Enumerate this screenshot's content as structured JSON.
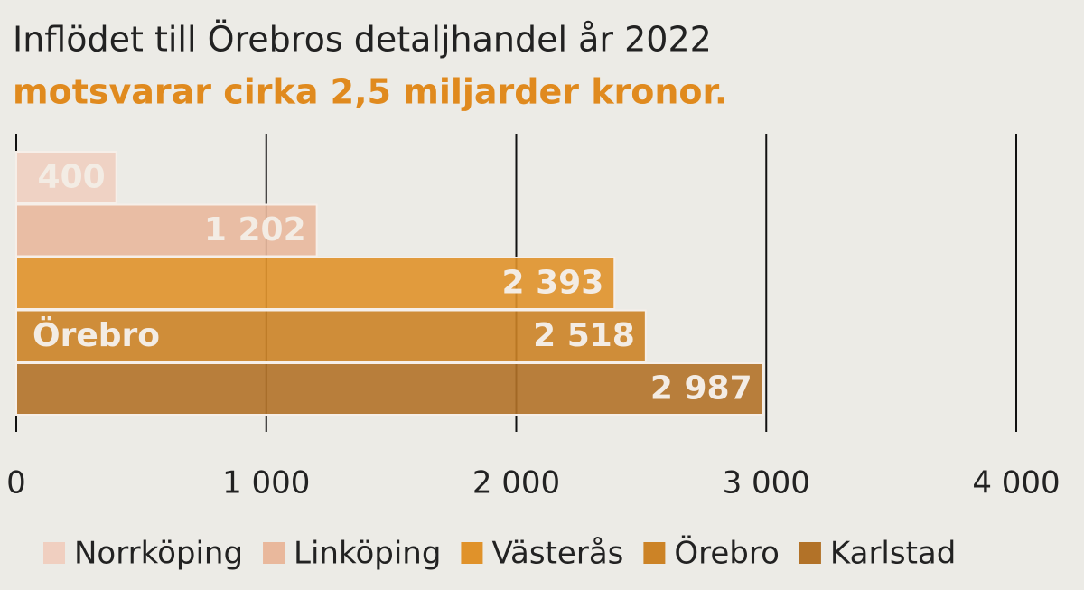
{
  "chart_data": {
    "type": "bar",
    "orientation": "horizontal",
    "title": "Inflödet till Örebros detaljhandel år 2022",
    "subtitle": "motsvarar cirka 2,5 miljarder kronor.",
    "series": [
      {
        "name": "Norrköping",
        "color": "#f0cfc0",
        "values": [
          400
        ]
      },
      {
        "name": "Linköping",
        "color": "#e9b89c",
        "values": [
          1202
        ],
        "value_labels": [
          "1 202"
        ]
      },
      {
        "name": "Västerås",
        "color": "#e0922a",
        "values": [
          2393
        ],
        "value_labels": [
          "2 393"
        ]
      },
      {
        "name": "Örebro",
        "color": "#cc8326",
        "values": [
          2518
        ],
        "value_labels": [
          "2 518"
        ]
      },
      {
        "name": "Karlstad",
        "color": "#b27228",
        "values": [
          2987
        ],
        "value_labels": [
          "2 987"
        ]
      }
    ],
    "highlight": 3,
    "xlim": [
      0,
      4000
    ],
    "xticks": [
      0,
      {
        "value": 1000,
        "label": "1 000"
      },
      {
        "value": 2000,
        "label": "2 000"
      },
      {
        "value": 3000,
        "label": "3 000"
      },
      {
        "value": 4000,
        "label": "4 000"
      }
    ],
    "grid": true,
    "legend": "bottom"
  }
}
